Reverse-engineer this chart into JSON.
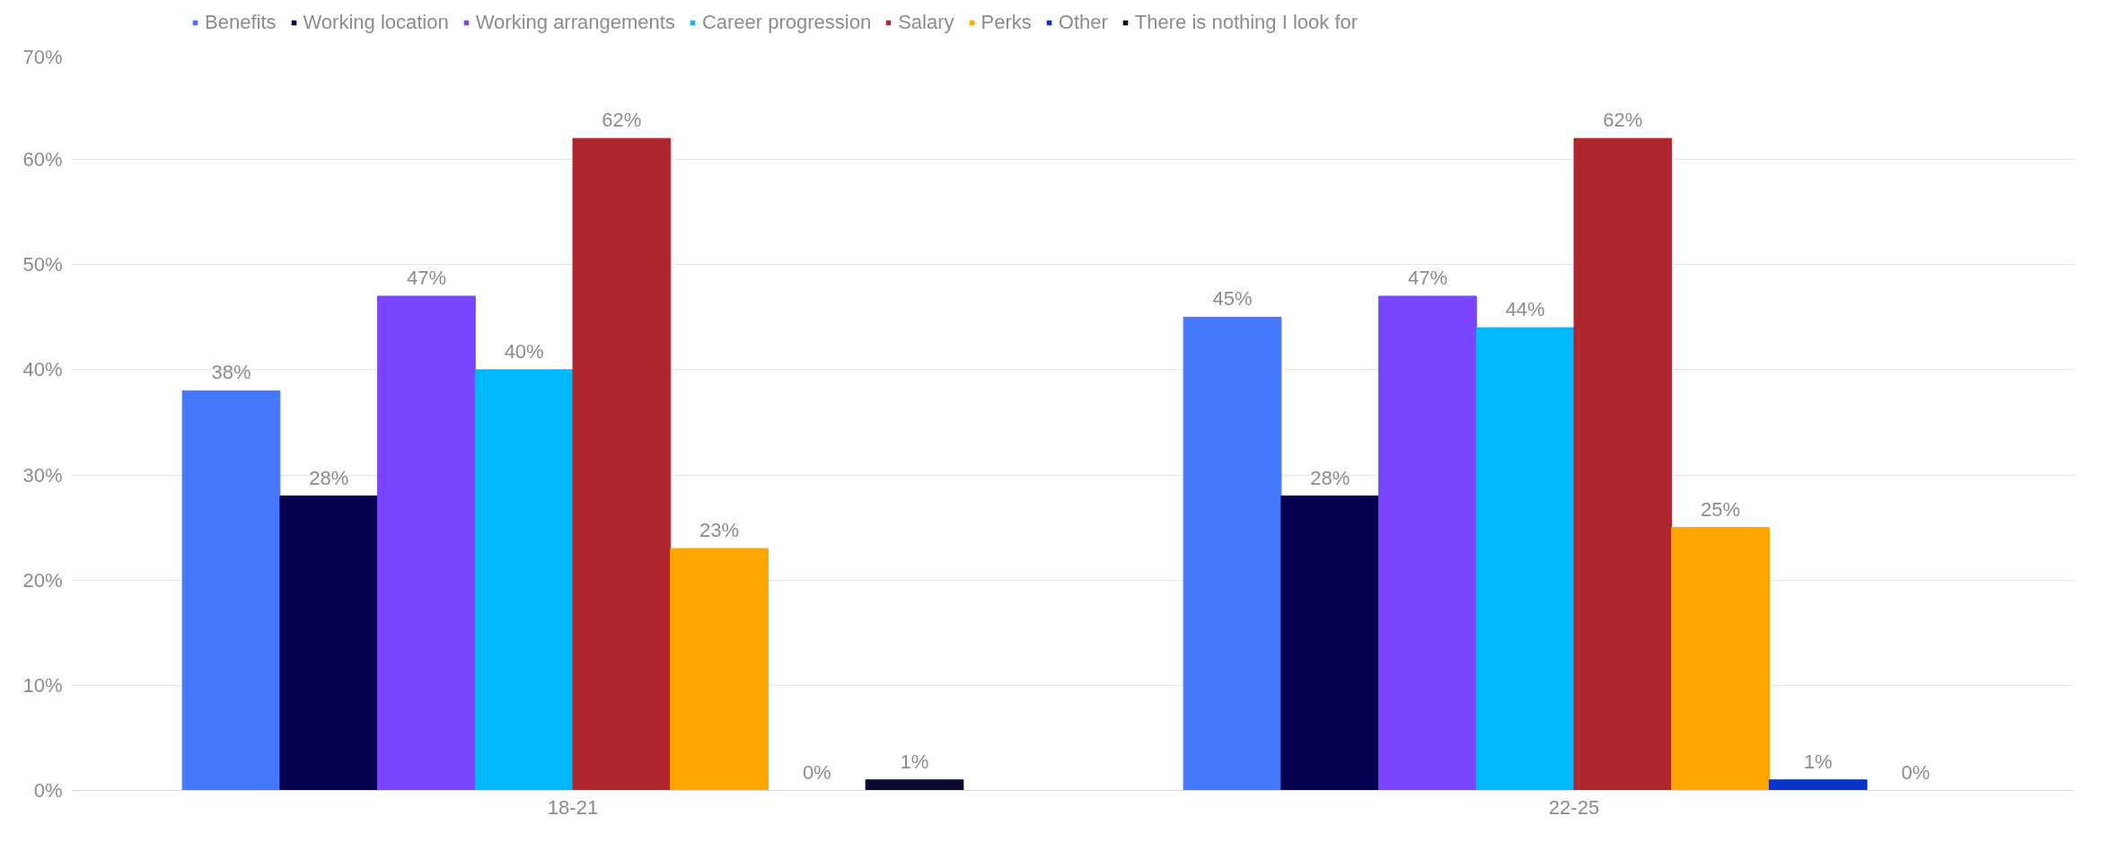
{
  "chart_data": {
    "type": "bar",
    "categories": [
      "18-21",
      "22-25"
    ],
    "series": [
      {
        "name": "Benefits",
        "color": "#4678ff",
        "values": [
          38,
          45
        ],
        "value_labels": [
          "38%",
          "45%"
        ]
      },
      {
        "name": "Working location",
        "color": "#07004f",
        "values": [
          28,
          28
        ],
        "value_labels": [
          "28%",
          "28%"
        ]
      },
      {
        "name": "Working arrangements",
        "color": "#7b44ff",
        "values": [
          47,
          47
        ],
        "value_labels": [
          "47%",
          "47%"
        ]
      },
      {
        "name": "Career progression",
        "color": "#00b9ff",
        "values": [
          40,
          44
        ],
        "value_labels": [
          "40%",
          "44%"
        ]
      },
      {
        "name": "Salary",
        "color": "#b0262e",
        "values": [
          62,
          62
        ],
        "value_labels": [
          "62%",
          "62%"
        ]
      },
      {
        "name": "Perks",
        "color": "#ffa400",
        "values": [
          23,
          25
        ],
        "value_labels": [
          "23%",
          "25%"
        ]
      },
      {
        "name": "Other",
        "color": "#0a35c8",
        "values": [
          0,
          1
        ],
        "value_labels": [
          "0%",
          "1%"
        ]
      },
      {
        "name": "There is nothing I look for",
        "color": "#0b0830",
        "values": [
          1,
          0
        ],
        "value_labels": [
          "1%",
          "0%"
        ]
      }
    ],
    "ylim": [
      0,
      70
    ],
    "yticks": [
      {
        "value": 0,
        "label": "0%"
      },
      {
        "value": 10,
        "label": "10%"
      },
      {
        "value": 20,
        "label": "20%"
      },
      {
        "value": 30,
        "label": "30%"
      },
      {
        "value": 40,
        "label": "40%"
      },
      {
        "value": 50,
        "label": "50%"
      },
      {
        "value": 60,
        "label": "60%"
      },
      {
        "value": 70,
        "label": "70%"
      }
    ],
    "grid": "y",
    "legend": "top"
  }
}
